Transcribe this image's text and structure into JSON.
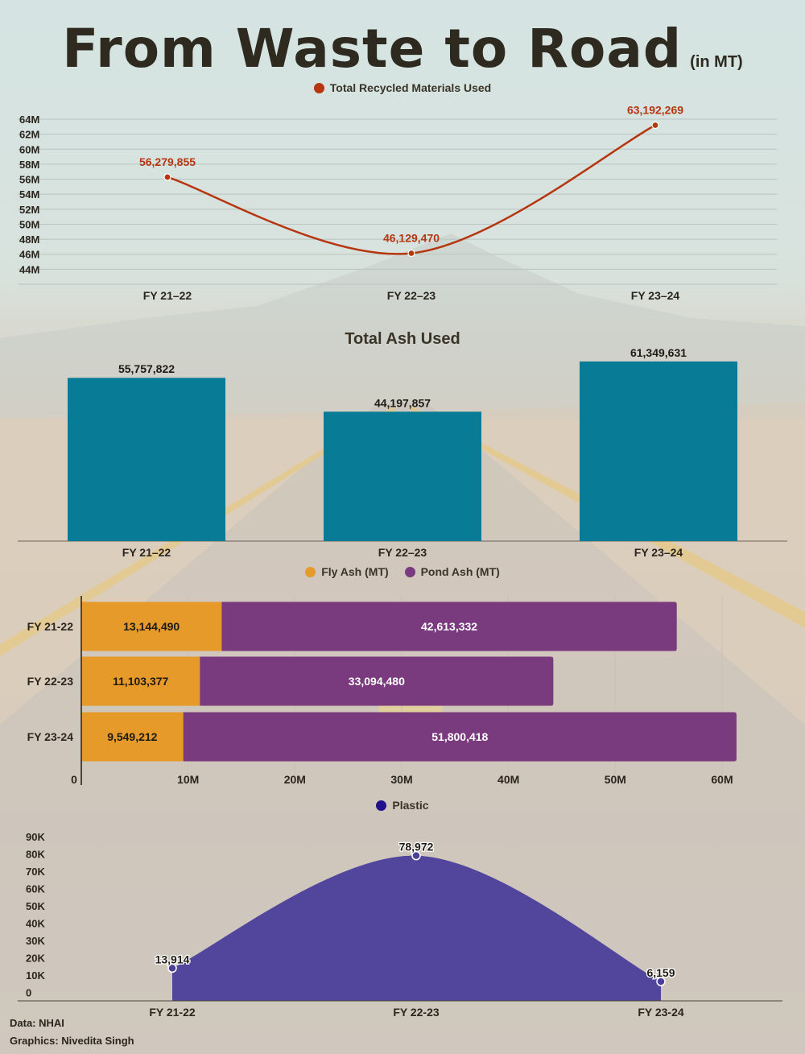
{
  "header": {
    "title": "From Waste to Road",
    "unit": "(in MT)"
  },
  "colors": {
    "recycled_line": "#b5360f",
    "ash_bar": "#087c96",
    "fly_ash": "#e59a2a",
    "pond_ash": "#7a3a7e",
    "plastic": "#4b3f9a",
    "plastic_point": "#1f128a"
  },
  "chart_data": [
    {
      "type": "line",
      "legend": [
        "Total Recycled Materials Used"
      ],
      "categories": [
        "FY 21–22",
        "FY 22–23",
        "FY 23–24"
      ],
      "series": [
        {
          "name": "Total Recycled Materials Used",
          "values": [
            56279855,
            46129470,
            63192269
          ]
        }
      ],
      "data_labels": [
        "56,279,855",
        "46,129,470",
        "63,192,269"
      ],
      "yticks": [
        "44M",
        "46M",
        "48M",
        "50M",
        "52M",
        "54M",
        "56M",
        "58M",
        "60M",
        "62M",
        "64M"
      ],
      "ylim": [
        42000000,
        64000000
      ],
      "grid": true
    },
    {
      "type": "bar",
      "title": "Total Ash Used",
      "categories": [
        "FY 21–22",
        "FY 22–23",
        "FY 23–24"
      ],
      "values": [
        55757822,
        44197857,
        61349631
      ],
      "data_labels": [
        "55,757,822",
        "44,197,857",
        "61,349,631"
      ],
      "ylim": [
        0,
        66000000
      ]
    },
    {
      "type": "bar",
      "orientation": "horizontal",
      "stacked": true,
      "legend": [
        "Fly Ash (MT)",
        "Pond Ash (MT)"
      ],
      "categories": [
        "FY 21-22",
        "FY 22-23",
        "FY 23-24"
      ],
      "series": [
        {
          "name": "Fly Ash (MT)",
          "values": [
            13144490,
            11103377,
            9549212
          ],
          "labels": [
            "13,144,490",
            "11,103,377",
            "9,549,212"
          ]
        },
        {
          "name": "Pond Ash (MT)",
          "values": [
            42613332,
            33094480,
            51800418
          ],
          "labels": [
            "42,613,332",
            "33,094,480",
            "51,800,418"
          ]
        }
      ],
      "xticks": [
        "0",
        "10M",
        "20M",
        "30M",
        "40M",
        "50M",
        "60M"
      ],
      "xlim": [
        0,
        62000000
      ],
      "grid": true
    },
    {
      "type": "area",
      "legend": [
        "Plastic"
      ],
      "categories": [
        "FY 21-22",
        "FY 22-23",
        "FY 23-24"
      ],
      "series": [
        {
          "name": "Plastic",
          "values": [
            13914,
            78972,
            6159
          ]
        }
      ],
      "data_labels": [
        "13,914",
        "78,972",
        "6,159"
      ],
      "yticks": [
        "0",
        "10K",
        "20K",
        "30K",
        "40K",
        "50K",
        "60K",
        "70K",
        "80K",
        "90K"
      ],
      "ylim": [
        -5000,
        90000
      ]
    }
  ],
  "footer": {
    "source": "Data: NHAI",
    "credit": "Graphics: Nivedita Singh"
  }
}
